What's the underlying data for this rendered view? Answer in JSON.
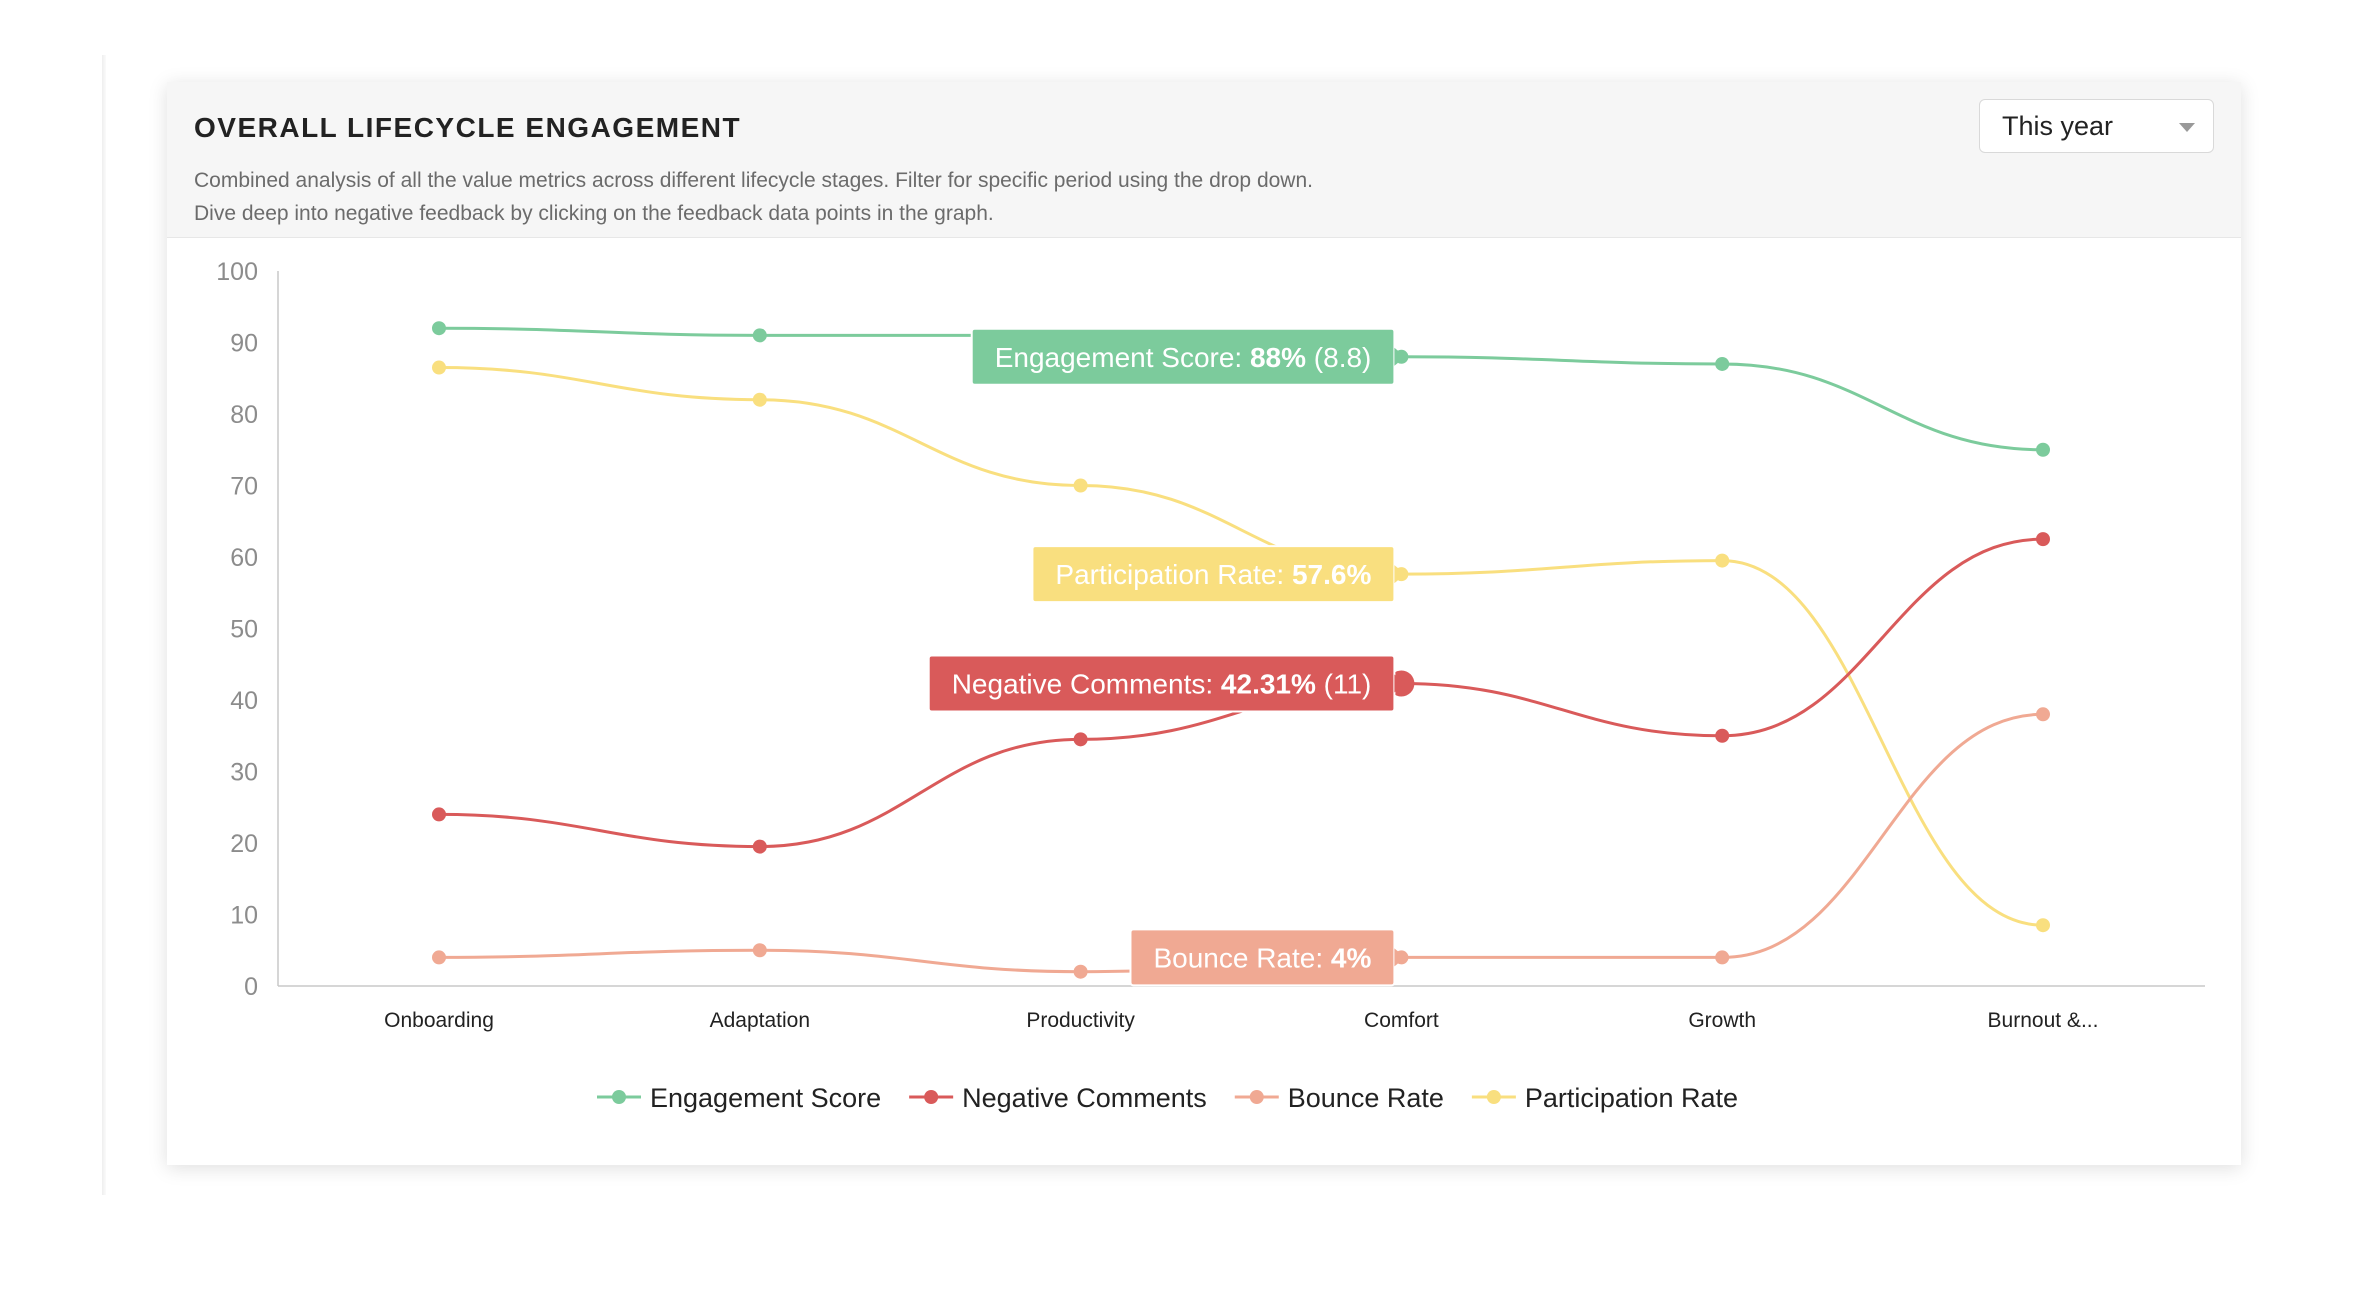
{
  "header": {
    "title": "OVERALL LIFECYCLE ENGAGEMENT",
    "description_line1": "Combined analysis of all the value metrics across different lifecycle stages. Filter for specific period using the drop down.",
    "description_line2": "Dive deep into negative feedback by clicking on the feedback data points in the graph.",
    "period_select": {
      "value": "This year"
    }
  },
  "colors": {
    "engagement": "#7ccb9c",
    "negative": "#d95a5a",
    "bounce": "#f0a993",
    "participation": "#f9df7f"
  },
  "chart_data": {
    "type": "line",
    "categories": [
      "Onboarding",
      "Adaptation",
      "Productivity",
      "Comfort",
      "Growth",
      "Burnout &..."
    ],
    "ylim": [
      0,
      100
    ],
    "yticks": [
      0,
      10,
      20,
      30,
      40,
      50,
      60,
      70,
      80,
      90,
      100
    ],
    "legend_position": "bottom",
    "grid": false,
    "series": [
      {
        "name": "Engagement Score",
        "color": "#7ccb9c",
        "values": [
          92,
          91,
          91,
          88,
          87,
          75
        ]
      },
      {
        "name": "Negative Comments",
        "color": "#d95a5a",
        "values": [
          24,
          19.5,
          34.5,
          42.31,
          35,
          62.5
        ]
      },
      {
        "name": "Bounce Rate",
        "color": "#f0a993",
        "values": [
          4,
          5,
          2,
          4,
          4,
          38
        ]
      },
      {
        "name": "Participation Rate",
        "color": "#f9df7f",
        "values": [
          86.5,
          82,
          70,
          57.6,
          59.5,
          8.5
        ]
      }
    ],
    "tooltips": [
      {
        "series_index": 0,
        "category": "Comfort",
        "label": "Engagement Score:",
        "value": "88%",
        "extra": "(8.8)",
        "color": "#7ccb9c"
      },
      {
        "series_index": 3,
        "category": "Comfort",
        "label": "Participation Rate:",
        "value": "57.6%",
        "extra": "",
        "color": "#f9df7f"
      },
      {
        "series_index": 1,
        "category": "Comfort",
        "label": "Negative Comments:",
        "value": "42.31%",
        "extra": "(11)",
        "color": "#d95a5a"
      },
      {
        "series_index": 2,
        "category": "Comfort",
        "label": "Bounce Rate:",
        "value": "4%",
        "extra": "",
        "color": "#f0a993"
      }
    ]
  }
}
